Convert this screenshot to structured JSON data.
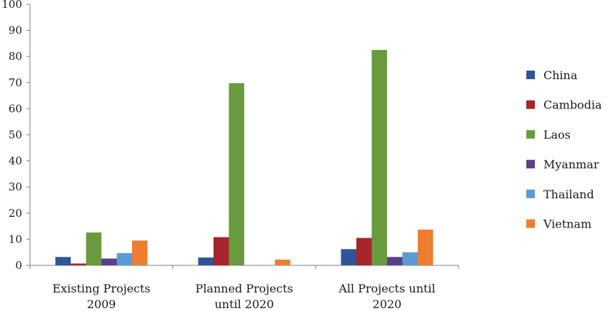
{
  "chart_data": {
    "type": "bar",
    "categories": [
      [
        "Existing Projects",
        "2009"
      ],
      [
        "Planned Projects",
        "until 2020"
      ],
      [
        "All Projects until",
        "2020"
      ]
    ],
    "series": [
      {
        "name": "China",
        "color": "#2e5597",
        "values": [
          3.2,
          3.0,
          6.2
        ]
      },
      {
        "name": "Cambodia",
        "color": "#a6242b",
        "values": [
          0.7,
          10.8,
          10.5
        ]
      },
      {
        "name": "Laos",
        "color": "#6a9a3e",
        "values": [
          12.6,
          69.8,
          82.5
        ]
      },
      {
        "name": "Myanmar",
        "color": "#5a3f8a",
        "values": [
          2.6,
          0,
          3.2
        ]
      },
      {
        "name": "Thailand",
        "color": "#5b9bd5",
        "values": [
          4.7,
          0,
          5.0
        ]
      },
      {
        "name": "Vietnam",
        "color": "#ed7d31",
        "values": [
          9.5,
          2.2,
          13.7
        ]
      }
    ],
    "ylim": [
      0,
      100
    ],
    "yticks": [
      0,
      10,
      20,
      30,
      40,
      50,
      60,
      70,
      80,
      90,
      100
    ],
    "title": "",
    "xlabel": "",
    "ylabel": "",
    "grid": false,
    "legend_position": "right"
  }
}
